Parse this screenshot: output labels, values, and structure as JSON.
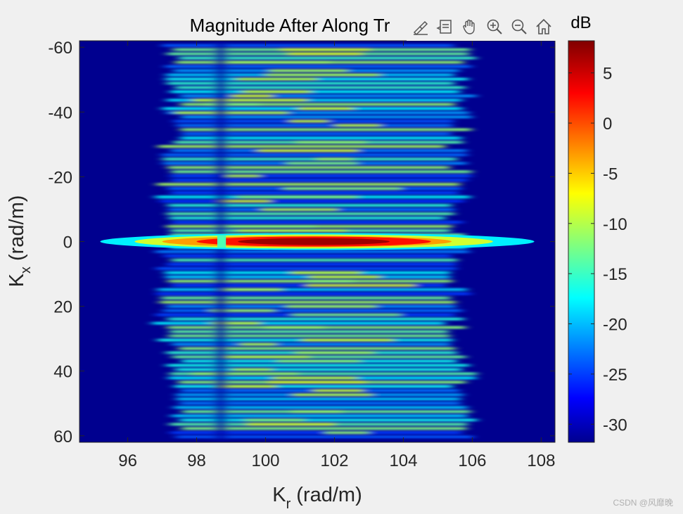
{
  "chart_data": {
    "type": "heatmap",
    "title": "Magnitude After Along Tr",
    "xlabel_base": "K",
    "xlabel_sub": "r",
    "xlabel_unit": " (rad/m)",
    "ylabel_base": "K",
    "ylabel_sub": "x",
    "ylabel_unit": " (rad/m)",
    "xlim": [
      94.6,
      108.4
    ],
    "ylim": [
      -62,
      62
    ],
    "y_reversed": true,
    "xticks": [
      96,
      98,
      100,
      102,
      104,
      106,
      108
    ],
    "yticks": [
      -60,
      -40,
      -20,
      0,
      20,
      40,
      60
    ],
    "colormap": "jet",
    "colorbar": {
      "label": "dB",
      "clim": [
        -31.8,
        8.2
      ],
      "ticks": [
        5,
        0,
        -5,
        -10,
        -15,
        -20,
        -25,
        -30
      ]
    },
    "description_values": {
      "band_kr_range": [
        97,
        106
      ],
      "peak_kx": 0,
      "peak_kr": 101.5,
      "peak_db": 8
    }
  },
  "toolbar": {
    "items": [
      {
        "name": "brush-icon",
        "label": "Brush/Export"
      },
      {
        "name": "datatip-icon",
        "label": "Data Tips"
      },
      {
        "name": "pan-icon",
        "label": "Pan"
      },
      {
        "name": "zoom-in-icon",
        "label": "Zoom In"
      },
      {
        "name": "zoom-out-icon",
        "label": "Zoom Out"
      },
      {
        "name": "home-icon",
        "label": "Restore View"
      }
    ]
  },
  "watermark": "CSDN @风靡晚"
}
